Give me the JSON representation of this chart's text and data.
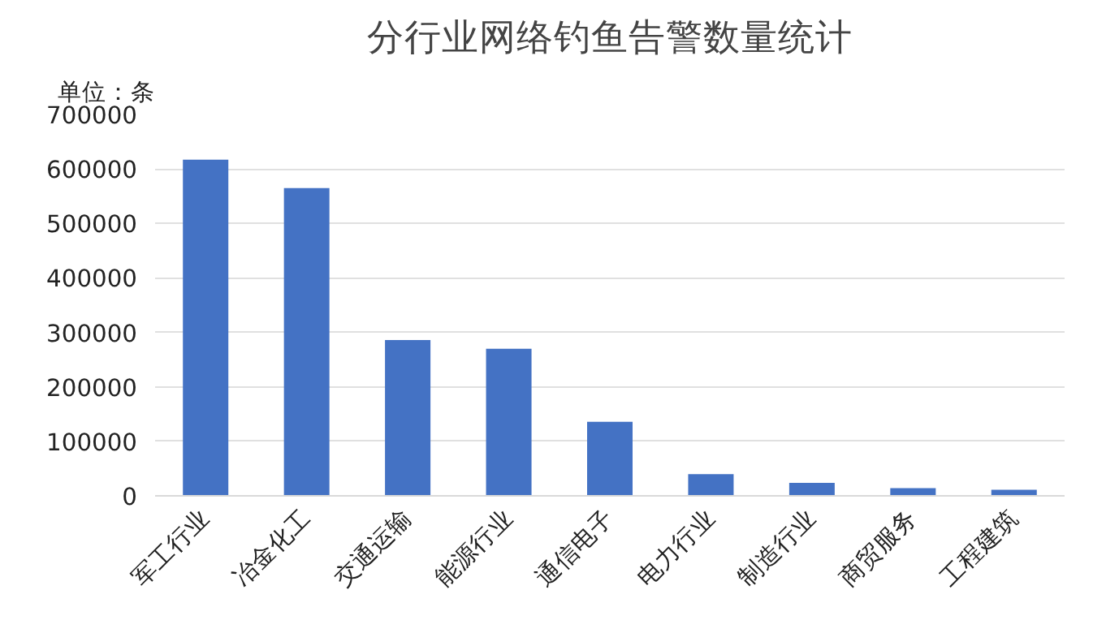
{
  "chart_data": {
    "type": "bar",
    "title": "分行业网络钓鱼告警数量统计",
    "annotations": [
      "单位：条"
    ],
    "categories": [
      "军工行业",
      "冶金化工",
      "交通运输",
      "能源行业",
      "通信电子",
      "电力行业",
      "制造行业",
      "商贸服务",
      "工程建筑"
    ],
    "values": [
      617000,
      565000,
      286000,
      270000,
      136000,
      40000,
      24000,
      14000,
      11000
    ],
    "color": "#4472c4",
    "ylim": [
      0,
      700000
    ],
    "yticks": [
      0,
      100000,
      200000,
      300000,
      400000,
      500000,
      600000,
      700000
    ],
    "grid": "y"
  }
}
